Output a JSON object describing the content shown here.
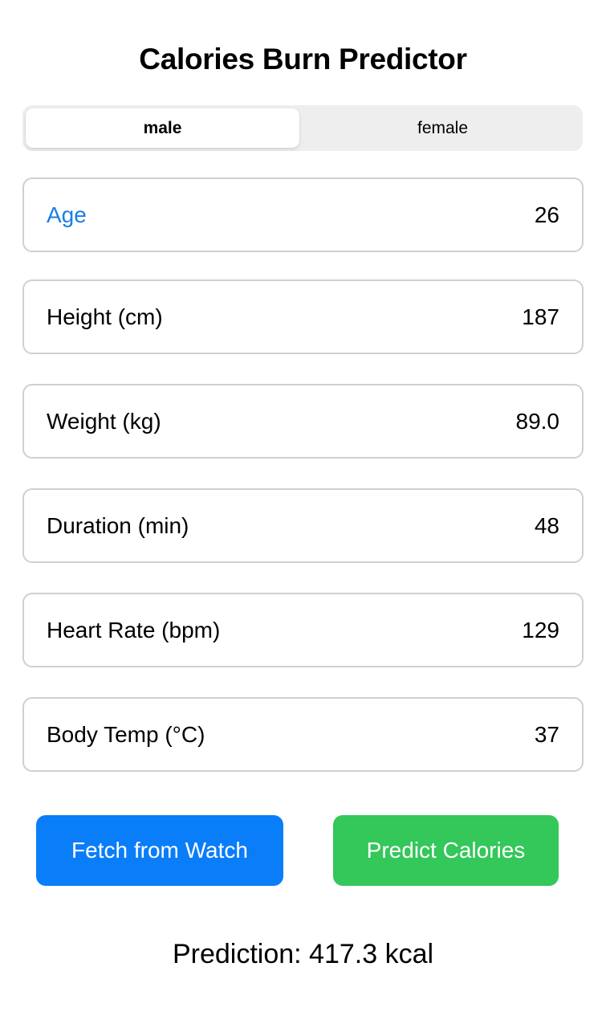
{
  "title": "Calories Burn Predictor",
  "gender": {
    "options": [
      "male",
      "female"
    ],
    "selected": "male"
  },
  "fields": {
    "age": {
      "label": "Age",
      "value": "26",
      "focused": true
    },
    "height": {
      "label": "Height (cm)",
      "value": "187"
    },
    "weight": {
      "label": "Weight (kg)",
      "value": "89.0"
    },
    "duration": {
      "label": "Duration (min)",
      "value": "48"
    },
    "heart_rate": {
      "label": "Heart Rate (bpm)",
      "value": "129"
    },
    "body_temp": {
      "label": "Body Temp (°C)",
      "value": "37"
    }
  },
  "buttons": {
    "fetch_label": "Fetch from Watch",
    "predict_label": "Predict Calories"
  },
  "prediction": "Prediction: 417.3 kcal",
  "colors": {
    "accent_blue": "#0a7df9",
    "focus_label": "#1a7ee3",
    "accent_green": "#34c75a"
  }
}
